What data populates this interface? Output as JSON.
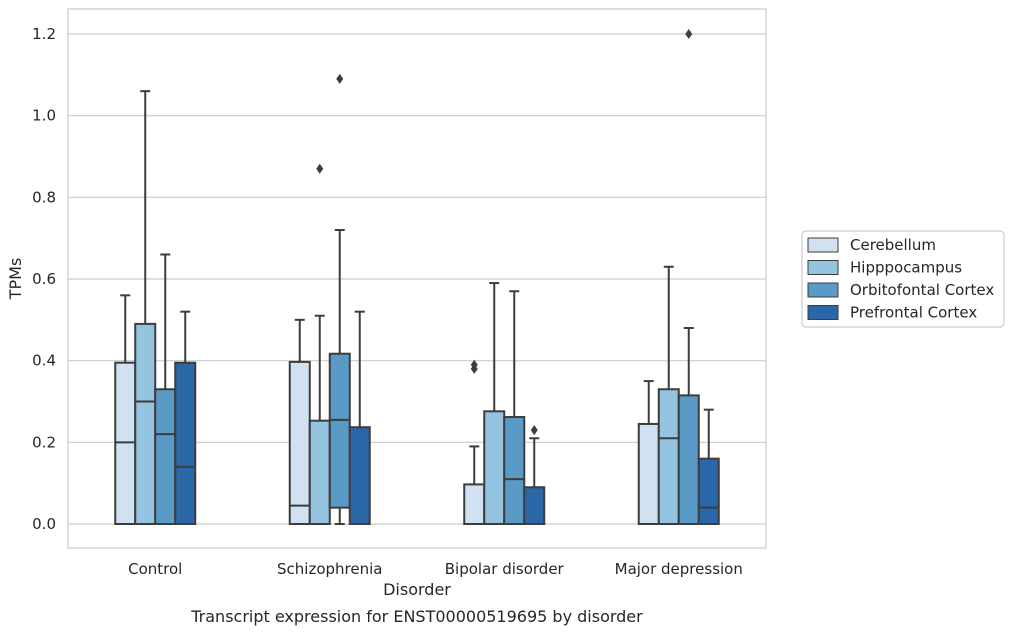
{
  "chart_data": {
    "type": "boxplot",
    "xlabel": "Disorder",
    "ylabel": "TPMs",
    "caption": "Transcript expression for ENST00000519695 by disorder",
    "ylim": [
      -0.06,
      1.26
    ],
    "yticks": [
      0.0,
      0.2,
      0.4,
      0.6,
      0.8,
      1.0,
      1.2
    ],
    "ytick_labels": [
      "0.0",
      "0.2",
      "0.4",
      "0.6",
      "0.8",
      "1.0",
      "1.2"
    ],
    "grid": "horizontal",
    "legend_position": "right",
    "categories": [
      "Control",
      "Schizophrenia",
      "Bipolar disorder",
      "Major depression"
    ],
    "series": [
      {
        "name": "Cerebellum",
        "color": "#d0e1f2",
        "boxes": [
          {
            "q1": 0.0,
            "median": 0.2,
            "q3": 0.395,
            "whisker_low": 0.0,
            "whisker_high": 0.56,
            "outliers": []
          },
          {
            "q1": 0.0,
            "median": 0.045,
            "q3": 0.397,
            "whisker_low": 0.0,
            "whisker_high": 0.5,
            "outliers": []
          },
          {
            "q1": 0.0,
            "median": 0.0,
            "q3": 0.097,
            "whisker_low": 0.0,
            "whisker_high": 0.19,
            "outliers": [
              0.38,
              0.39
            ]
          },
          {
            "q1": 0.0,
            "median": 0.0,
            "q3": 0.245,
            "whisker_low": 0.0,
            "whisker_high": 0.35,
            "outliers": []
          }
        ]
      },
      {
        "name": "Hipppocampus",
        "color": "#94c4df",
        "boxes": [
          {
            "q1": 0.0,
            "median": 0.3,
            "q3": 0.49,
            "whisker_low": 0.0,
            "whisker_high": 1.06,
            "outliers": []
          },
          {
            "q1": 0.0,
            "median": 0.0,
            "q3": 0.253,
            "whisker_low": 0.0,
            "whisker_high": 0.51,
            "outliers": [
              0.87
            ]
          },
          {
            "q1": 0.0,
            "median": 0.0,
            "q3": 0.276,
            "whisker_low": 0.0,
            "whisker_high": 0.59,
            "outliers": []
          },
          {
            "q1": 0.0,
            "median": 0.21,
            "q3": 0.33,
            "whisker_low": 0.0,
            "whisker_high": 0.63,
            "outliers": []
          }
        ]
      },
      {
        "name": "Orbitofontal Cortex",
        "color": "#5a9ac7",
        "boxes": [
          {
            "q1": 0.0,
            "median": 0.22,
            "q3": 0.33,
            "whisker_low": 0.0,
            "whisker_high": 0.66,
            "outliers": []
          },
          {
            "q1": 0.04,
            "median": 0.255,
            "q3": 0.417,
            "whisker_low": 0.0,
            "whisker_high": 0.72,
            "outliers": [
              1.09
            ]
          },
          {
            "q1": 0.0,
            "median": 0.11,
            "q3": 0.262,
            "whisker_low": 0.0,
            "whisker_high": 0.57,
            "outliers": []
          },
          {
            "q1": 0.0,
            "median": 0.0,
            "q3": 0.315,
            "whisker_low": 0.0,
            "whisker_high": 0.48,
            "outliers": [
              1.2
            ]
          }
        ]
      },
      {
        "name": "Prefrontal Cortex",
        "color": "#2a67a6",
        "boxes": [
          {
            "q1": 0.0,
            "median": 0.14,
            "q3": 0.395,
            "whisker_low": 0.0,
            "whisker_high": 0.52,
            "outliers": []
          },
          {
            "q1": 0.0,
            "median": 0.0,
            "q3": 0.237,
            "whisker_low": 0.0,
            "whisker_high": 0.52,
            "outliers": []
          },
          {
            "q1": 0.0,
            "median": 0.0,
            "q3": 0.09,
            "whisker_low": 0.0,
            "whisker_high": 0.21,
            "outliers": [
              0.23
            ]
          },
          {
            "q1": 0.0,
            "median": 0.04,
            "q3": 0.16,
            "whisker_low": 0.0,
            "whisker_high": 0.28,
            "outliers": []
          }
        ]
      }
    ]
  }
}
